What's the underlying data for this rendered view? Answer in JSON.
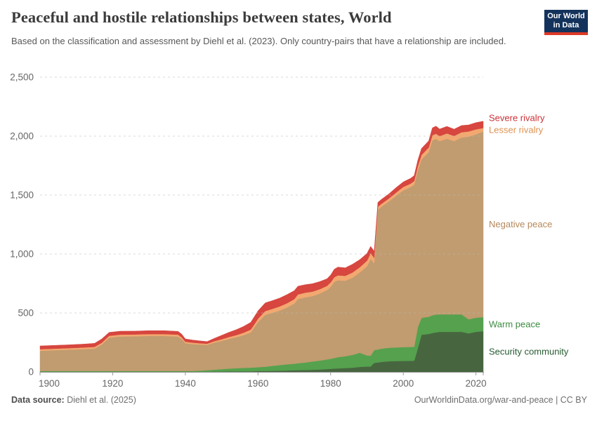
{
  "header": {
    "title": "Peaceful and hostile relationships between states, World",
    "subtitle": "Based on the classification and assessment by Diehl et al. (2023). Only country-pairs that have a relationship are included.",
    "logo": {
      "line1": "Our World",
      "line2": "in Data",
      "bg": "#14335c",
      "stripe": "#dc3927"
    }
  },
  "footer": {
    "source_label": "Data source:",
    "source_value": " Diehl et al. (2025)",
    "link": "OurWorldinData.org/war-and-peace | CC BY"
  },
  "chart_data": {
    "type": "area",
    "stacked": true,
    "title": "Peaceful and hostile relationships between states, World",
    "xlabel": "",
    "ylabel": "",
    "ylim": [
      0,
      2500
    ],
    "yticks": [
      0,
      500,
      1000,
      1500,
      2000,
      2500
    ],
    "ytick_labels": [
      "0",
      "500",
      "1,000",
      "1,500",
      "2,000",
      "2,500"
    ],
    "xticks": [
      1900,
      1920,
      1940,
      1960,
      1980,
      2000,
      2020
    ],
    "grid": "horizontal-dashed-above-areas",
    "legend_position": "right-edge-labels",
    "x": [
      1900,
      1904,
      1908,
      1912,
      1915,
      1917,
      1919,
      1922,
      1926,
      1930,
      1934,
      1938,
      1939,
      1940,
      1942,
      1944,
      1946,
      1948,
      1950,
      1952,
      1954,
      1956,
      1958,
      1959,
      1960,
      1962,
      1964,
      1966,
      1968,
      1970,
      1971,
      1973,
      1975,
      1977,
      1979,
      1980,
      1981,
      1982,
      1984,
      1986,
      1988,
      1990,
      1991,
      1992,
      1993,
      1994,
      1996,
      1998,
      2000,
      2002,
      2003,
      2004,
      2005,
      2007,
      2008,
      2009,
      2010,
      2012,
      2014,
      2016,
      2018,
      2020,
      2022
    ],
    "series": [
      {
        "name": "Security community",
        "color": "#47663f",
        "label_color": "#275b33",
        "values": [
          2,
          2,
          2,
          2,
          2,
          2,
          2,
          2,
          2,
          2,
          2,
          2,
          2,
          2,
          2,
          2,
          2,
          3,
          3,
          4,
          4,
          5,
          5,
          6,
          7,
          8,
          9,
          10,
          12,
          14,
          15,
          16,
          18,
          20,
          24,
          26,
          28,
          30,
          33,
          36,
          42,
          45,
          45,
          77,
          80,
          85,
          90,
          92,
          93,
          94,
          95,
          200,
          315,
          322,
          330,
          335,
          340,
          340,
          340,
          340,
          327,
          340,
          345
        ]
      },
      {
        "name": "Warm peace",
        "color": "#55a14e",
        "label_color": "#3d8b41",
        "values": [
          5,
          5,
          5,
          5,
          5,
          5,
          6,
          6,
          6,
          6,
          6,
          6,
          6,
          6,
          6,
          8,
          12,
          16,
          20,
          24,
          27,
          29,
          31,
          32,
          33,
          36,
          42,
          48,
          52,
          55,
          58,
          64,
          70,
          76,
          82,
          85,
          90,
          95,
          100,
          108,
          120,
          95,
          92,
          108,
          110,
          112,
          115,
          116,
          117,
          118,
          118,
          180,
          143,
          146,
          150,
          152,
          148,
          148,
          148,
          148,
          119,
          120,
          119
        ]
      },
      {
        "name": "Negative peace",
        "color": "#c09c70",
        "label_color": "#b6885a",
        "values": [
          172,
          177,
          181,
          186,
          190,
          225,
          282,
          292,
          294,
          297,
          297,
          292,
          270,
          235,
          228,
          222,
          215,
          230,
          240,
          252,
          263,
          277,
          298,
          340,
          382,
          440,
          450,
          462,
          482,
          510,
          545,
          552,
          555,
          568,
          588,
          610,
          645,
          652,
          640,
          655,
          680,
          755,
          820,
          735,
          1185,
          1205,
          1240,
          1285,
          1330,
          1355,
          1375,
          1330,
          1344,
          1395,
          1485,
          1490,
          1470,
          1490,
          1470,
          1500,
          1549,
          1555,
          1575
        ]
      },
      {
        "name": "Lesser rivalry",
        "color": "#f2a870",
        "label_color": "#de9251",
        "values": [
          13,
          13,
          14,
          14,
          15,
          15,
          16,
          16,
          16,
          16,
          16,
          16,
          15,
          13,
          12,
          11,
          10,
          12,
          14,
          16,
          18,
          21,
          25,
          27,
          29,
          32,
          34,
          36,
          37,
          38,
          39,
          40,
          38,
          38,
          36,
          38,
          40,
          42,
          42,
          44,
          45,
          48,
          50,
          48,
          25,
          24,
          25,
          28,
          29,
          30,
          31,
          35,
          38,
          40,
          42,
          43,
          42,
          45,
          44,
          45,
          45,
          43,
          30
        ]
      },
      {
        "name": "Severe rivalry",
        "color": "#d7463f",
        "label_color": "#cb3037",
        "values": [
          28,
          28,
          28,
          29,
          30,
          33,
          29,
          29,
          28,
          29,
          29,
          28,
          27,
          24,
          22,
          20,
          18,
          24,
          33,
          40,
          46,
          53,
          61,
          64,
          67,
          70,
          70,
          71,
          73,
          72,
          70,
          68,
          67,
          64,
          60,
          63,
          68,
          70,
          68,
          70,
          65,
          62,
          58,
          55,
          38,
          38,
          39,
          42,
          43,
          45,
          46,
          50,
          55,
          57,
          63,
          65,
          60,
          60,
          57,
          57,
          55,
          57,
          57
        ]
      }
    ]
  }
}
